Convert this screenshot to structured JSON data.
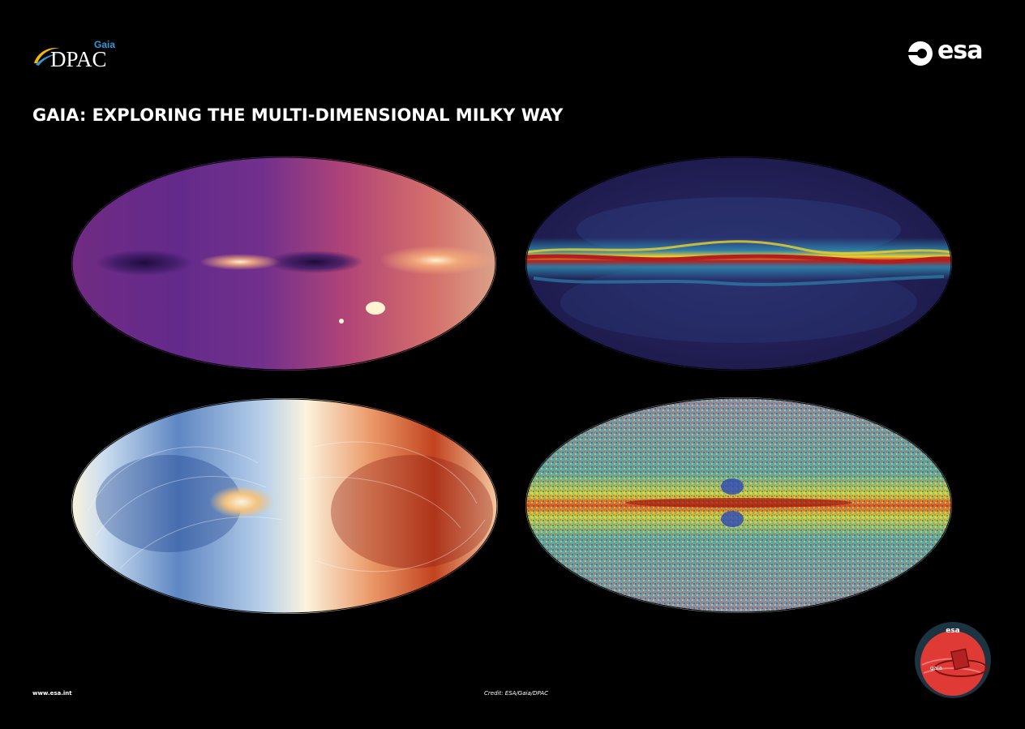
{
  "logos": {
    "dpac": {
      "small": "Gaia",
      "main": "DPAC",
      "color_small": "#2e9bd6",
      "swoosh_colors": [
        "#f2b705",
        "#2e9bd6"
      ]
    },
    "esa": {
      "word": "esa"
    }
  },
  "title": "GAIA: EXPLORING THE MULTI-DIMENSIONAL MILKY WAY",
  "maps": [
    {
      "palette": [
        "#1b0c3b",
        "#5b2a86",
        "#b83a7c",
        "#f0825a",
        "#fcd39b"
      ]
    },
    {
      "palette": [
        "#1c1748",
        "#2b3a7a",
        "#2f8fb5",
        "#f0d22a",
        "#b51e1e"
      ]
    },
    {
      "palette": [
        "#1c3f8a",
        "#8fb6dd",
        "#fbf3de",
        "#e67a4b",
        "#8b1a12"
      ]
    },
    {
      "palette": [
        "#2c46b8",
        "#3fb6a6",
        "#f3ea3a",
        "#e3521d",
        "#9e1a10"
      ]
    }
  ],
  "footer": {
    "url": "www.esa.int",
    "credit": "Credit: ESA/Gaia/DPAC"
  },
  "badge": {
    "top_word": "esa",
    "mission": "gaia",
    "ring_color": "#1c3441",
    "fill_color": "#e03a36"
  }
}
